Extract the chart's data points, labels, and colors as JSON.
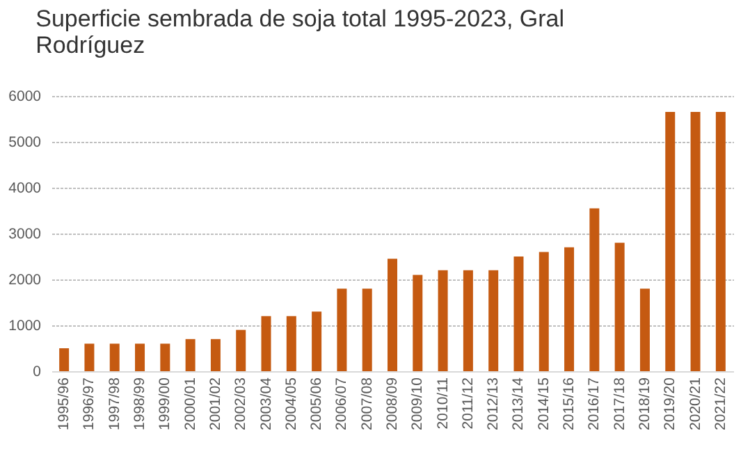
{
  "chart_data": {
    "type": "bar",
    "title": [
      "Superficie sembrada de soja total 1995-2023, Gral",
      "Rodríguez"
    ],
    "categories": [
      "1995/96",
      "1996/97",
      "1997/98",
      "1998/99",
      "1999/00",
      "2000/01",
      "2001/02",
      "2002/03",
      "2003/04",
      "2004/05",
      "2005/06",
      "2006/07",
      "2007/08",
      "2008/09",
      "2009/10",
      "2010/11",
      "2011/12",
      "2012/13",
      "2013/14",
      "2014/15",
      "2015/16",
      "2016/17",
      "2017/18",
      "2018/19",
      "2019/20",
      "2020/21",
      "2021/22"
    ],
    "values": [
      500,
      600,
      600,
      600,
      600,
      700,
      700,
      900,
      1200,
      1200,
      1300,
      1800,
      1800,
      2450,
      2100,
      2200,
      2200,
      2200,
      2500,
      2600,
      2700,
      3550,
      2800,
      1800,
      5650,
      5650,
      5650
    ],
    "color": "#c55a11",
    "ylim": [
      0,
      6000
    ],
    "yticks": [
      0,
      1000,
      2000,
      3000,
      4000,
      5000,
      6000
    ],
    "grid": "y"
  }
}
